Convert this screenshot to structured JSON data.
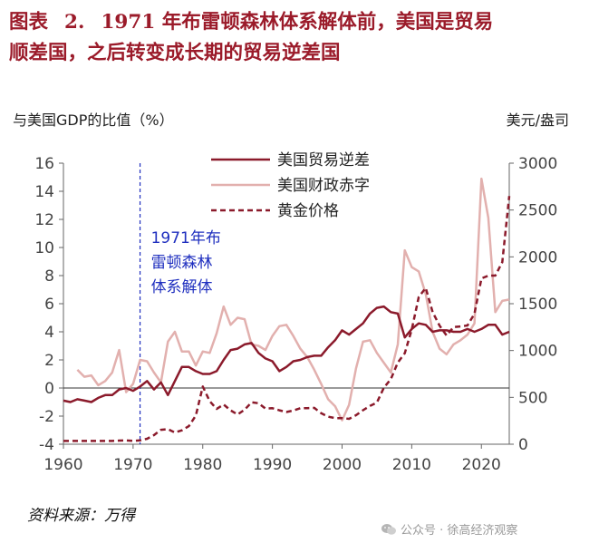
{
  "title": {
    "prefix": "图表",
    "number": "2.",
    "line1_text": "1971 年布雷顿森林体系解体前，美国是贸易",
    "line2_text": "顺差国，之后转变成长期的贸易逆差国"
  },
  "source": "资料来源：万得",
  "watermark": "公众号 · 徐高经济观察",
  "colors": {
    "trade": "#8b1a2b",
    "fiscal": "#e2b0ae",
    "gold": "#8b1a2b",
    "annotation": "#1f2fbf",
    "axis": "#666666"
  },
  "chart_data": {
    "type": "line",
    "ylabel_left": "与美国GDP的比值（%）",
    "ylabel_right": "美元/盎司",
    "xlim": [
      1960,
      2024
    ],
    "ylim_left": [
      -4,
      16
    ],
    "ylim_right": [
      0,
      3000
    ],
    "x_ticks": [
      1960,
      1970,
      1980,
      1990,
      2000,
      2010,
      2020
    ],
    "y_left_ticks": [
      -4,
      -2,
      0,
      2,
      4,
      6,
      8,
      10,
      12,
      14,
      16
    ],
    "y_right_ticks": [
      0,
      500,
      1000,
      1500,
      2000,
      2500,
      3000
    ],
    "legend_position": "top-center",
    "grid": false,
    "annotation": {
      "x": 1971,
      "lines": [
        "1971年布",
        "雷顿森林",
        "体系解体"
      ]
    },
    "series": [
      {
        "name": "美国贸易逆差",
        "axis": "left",
        "style": "solid",
        "points": [
          [
            1960,
            -0.9
          ],
          [
            1961,
            -1.0
          ],
          [
            1962,
            -0.8
          ],
          [
            1963,
            -0.9
          ],
          [
            1964,
            -1.0
          ],
          [
            1965,
            -0.7
          ],
          [
            1966,
            -0.5
          ],
          [
            1967,
            -0.5
          ],
          [
            1968,
            -0.1
          ],
          [
            1969,
            0.0
          ],
          [
            1970,
            -0.2
          ],
          [
            1971,
            0.1
          ],
          [
            1972,
            0.5
          ],
          [
            1973,
            -0.1
          ],
          [
            1974,
            0.4
          ],
          [
            1975,
            -0.5
          ],
          [
            1976,
            0.5
          ],
          [
            1977,
            1.5
          ],
          [
            1978,
            1.5
          ],
          [
            1979,
            1.2
          ],
          [
            1980,
            1.0
          ],
          [
            1981,
            1.0
          ],
          [
            1982,
            1.2
          ],
          [
            1983,
            2.0
          ],
          [
            1984,
            2.7
          ],
          [
            1985,
            2.8
          ],
          [
            1986,
            3.1
          ],
          [
            1987,
            3.2
          ],
          [
            1988,
            2.5
          ],
          [
            1989,
            2.1
          ],
          [
            1990,
            1.9
          ],
          [
            1991,
            1.2
          ],
          [
            1992,
            1.5
          ],
          [
            1993,
            1.9
          ],
          [
            1994,
            2.0
          ],
          [
            1995,
            2.2
          ],
          [
            1996,
            2.3
          ],
          [
            1997,
            2.3
          ],
          [
            1998,
            2.9
          ],
          [
            1999,
            3.4
          ],
          [
            2000,
            4.1
          ],
          [
            2001,
            3.8
          ],
          [
            2002,
            4.2
          ],
          [
            2003,
            4.6
          ],
          [
            2004,
            5.3
          ],
          [
            2005,
            5.7
          ],
          [
            2006,
            5.8
          ],
          [
            2007,
            5.4
          ],
          [
            2008,
            5.3
          ],
          [
            2009,
            3.6
          ],
          [
            2010,
            4.2
          ],
          [
            2011,
            4.6
          ],
          [
            2012,
            4.5
          ],
          [
            2013,
            4.0
          ],
          [
            2014,
            4.1
          ],
          [
            2015,
            4.1
          ],
          [
            2016,
            4.0
          ],
          [
            2017,
            4.0
          ],
          [
            2018,
            4.2
          ],
          [
            2019,
            4.0
          ],
          [
            2020,
            4.2
          ],
          [
            2021,
            4.5
          ],
          [
            2022,
            4.5
          ],
          [
            2023,
            3.8
          ],
          [
            2024,
            4.0
          ]
        ]
      },
      {
        "name": "美国财政赤字",
        "axis": "left",
        "style": "solid",
        "points": [
          [
            1962,
            1.3
          ],
          [
            1963,
            0.8
          ],
          [
            1964,
            0.9
          ],
          [
            1965,
            0.2
          ],
          [
            1966,
            0.5
          ],
          [
            1967,
            1.1
          ],
          [
            1968,
            2.7
          ],
          [
            1969,
            -0.3
          ],
          [
            1970,
            0.3
          ],
          [
            1971,
            2.0
          ],
          [
            1972,
            1.9
          ],
          [
            1973,
            1.1
          ],
          [
            1974,
            0.4
          ],
          [
            1975,
            3.3
          ],
          [
            1976,
            4.0
          ],
          [
            1977,
            2.6
          ],
          [
            1978,
            2.6
          ],
          [
            1979,
            1.6
          ],
          [
            1980,
            2.6
          ],
          [
            1981,
            2.5
          ],
          [
            1982,
            3.9
          ],
          [
            1983,
            5.8
          ],
          [
            1984,
            4.5
          ],
          [
            1985,
            5.0
          ],
          [
            1986,
            4.9
          ],
          [
            1987,
            3.1
          ],
          [
            1988,
            3.0
          ],
          [
            1989,
            2.7
          ],
          [
            1990,
            3.7
          ],
          [
            1991,
            4.4
          ],
          [
            1992,
            4.5
          ],
          [
            1993,
            3.7
          ],
          [
            1994,
            2.8
          ],
          [
            1995,
            2.2
          ],
          [
            1996,
            1.3
          ],
          [
            1997,
            0.3
          ],
          [
            1998,
            -0.8
          ],
          [
            1999,
            -1.3
          ],
          [
            2000,
            -2.3
          ],
          [
            2001,
            -1.2
          ],
          [
            2002,
            1.4
          ],
          [
            2003,
            3.3
          ],
          [
            2004,
            3.4
          ],
          [
            2005,
            2.5
          ],
          [
            2006,
            1.8
          ],
          [
            2007,
            1.1
          ],
          [
            2008,
            3.1
          ],
          [
            2009,
            9.8
          ],
          [
            2010,
            8.6
          ],
          [
            2011,
            8.3
          ],
          [
            2012,
            6.7
          ],
          [
            2013,
            4.0
          ],
          [
            2014,
            2.8
          ],
          [
            2015,
            2.4
          ],
          [
            2016,
            3.1
          ],
          [
            2017,
            3.4
          ],
          [
            2018,
            3.8
          ],
          [
            2019,
            4.6
          ],
          [
            2020,
            14.9
          ],
          [
            2021,
            12.1
          ],
          [
            2022,
            5.4
          ],
          [
            2023,
            6.2
          ],
          [
            2024,
            6.3
          ]
        ]
      },
      {
        "name": "黄金价格",
        "axis": "right",
        "style": "dashed",
        "points": [
          [
            1960,
            35
          ],
          [
            1961,
            35
          ],
          [
            1962,
            35
          ],
          [
            1963,
            35
          ],
          [
            1964,
            35
          ],
          [
            1965,
            35
          ],
          [
            1966,
            35
          ],
          [
            1967,
            35
          ],
          [
            1968,
            39
          ],
          [
            1969,
            41
          ],
          [
            1970,
            36
          ],
          [
            1971,
            41
          ],
          [
            1972,
            58
          ],
          [
            1973,
            97
          ],
          [
            1974,
            154
          ],
          [
            1975,
            161
          ],
          [
            1976,
            125
          ],
          [
            1977,
            148
          ],
          [
            1978,
            193
          ],
          [
            1979,
            306
          ],
          [
            1980,
            615
          ],
          [
            1981,
            460
          ],
          [
            1982,
            376
          ],
          [
            1983,
            424
          ],
          [
            1984,
            361
          ],
          [
            1985,
            317
          ],
          [
            1986,
            368
          ],
          [
            1987,
            447
          ],
          [
            1988,
            437
          ],
          [
            1989,
            381
          ],
          [
            1990,
            384
          ],
          [
            1991,
            362
          ],
          [
            1992,
            344
          ],
          [
            1993,
            360
          ],
          [
            1994,
            384
          ],
          [
            1995,
            384
          ],
          [
            1996,
            388
          ],
          [
            1997,
            331
          ],
          [
            1998,
            294
          ],
          [
            1999,
            279
          ],
          [
            2000,
            279
          ],
          [
            2001,
            271
          ],
          [
            2002,
            310
          ],
          [
            2003,
            363
          ],
          [
            2004,
            409
          ],
          [
            2005,
            444
          ],
          [
            2006,
            603
          ],
          [
            2007,
            695
          ],
          [
            2008,
            872
          ],
          [
            2009,
            972
          ],
          [
            2010,
            1224
          ],
          [
            2011,
            1571
          ],
          [
            2012,
            1669
          ],
          [
            2013,
            1411
          ],
          [
            2014,
            1266
          ],
          [
            2015,
            1160
          ],
          [
            2016,
            1251
          ],
          [
            2017,
            1257
          ],
          [
            2018,
            1268
          ],
          [
            2019,
            1393
          ],
          [
            2020,
            1770
          ],
          [
            2021,
            1799
          ],
          [
            2022,
            1800
          ],
          [
            2023,
            1943
          ],
          [
            2024,
            2650
          ]
        ]
      }
    ]
  }
}
